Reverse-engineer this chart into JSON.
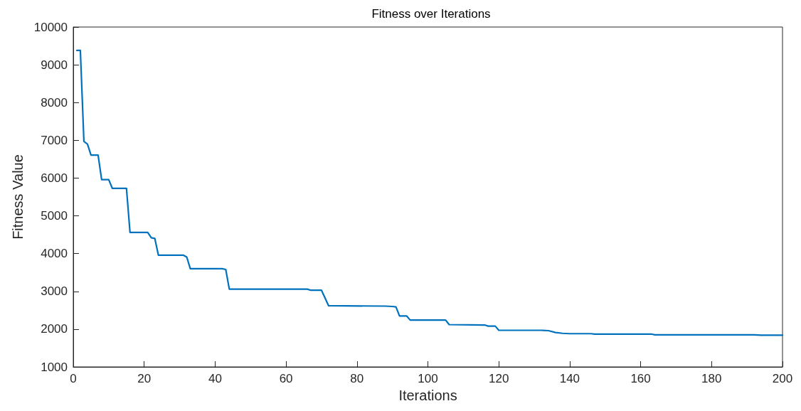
{
  "chart_data": {
    "type": "line",
    "title": "Fitness over Iterations",
    "xlabel": "Iterations",
    "ylabel": "Fitness Value",
    "x": [
      1,
      2,
      3,
      4,
      5,
      7,
      8,
      10,
      11,
      15,
      16,
      21,
      22,
      23,
      24,
      31,
      32,
      33,
      42,
      43,
      44,
      66,
      67,
      70,
      72,
      88,
      90,
      91,
      92,
      94,
      95,
      105,
      106,
      116,
      117,
      119,
      120,
      132,
      134,
      136,
      138,
      140,
      146,
      147,
      163,
      164,
      192,
      194,
      200
    ],
    "series": [
      {
        "color": "#0072bd",
        "values": [
          9380,
          9380,
          6970,
          6900,
          6610,
          6610,
          5960,
          5960,
          5730,
          5730,
          4560,
          4560,
          4420,
          4400,
          3960,
          3960,
          3910,
          3600,
          3600,
          3580,
          3060,
          3060,
          3030,
          3030,
          2620,
          2610,
          2600,
          2590,
          2350,
          2350,
          2240,
          2240,
          2120,
          2110,
          2080,
          2080,
          1970,
          1970,
          1960,
          1910,
          1890,
          1880,
          1880,
          1870,
          1870,
          1850,
          1850,
          1840,
          1840
        ]
      }
    ],
    "xlim": [
      0,
      200
    ],
    "xticks": [
      0,
      20,
      40,
      60,
      80,
      100,
      120,
      140,
      160,
      180,
      200
    ],
    "ylim": [
      1000,
      10000
    ],
    "yticks": [
      1000,
      2000,
      3000,
      4000,
      5000,
      6000,
      7000,
      8000,
      9000,
      10000
    ],
    "grid": false,
    "marker": "none",
    "line_style": "solid"
  }
}
